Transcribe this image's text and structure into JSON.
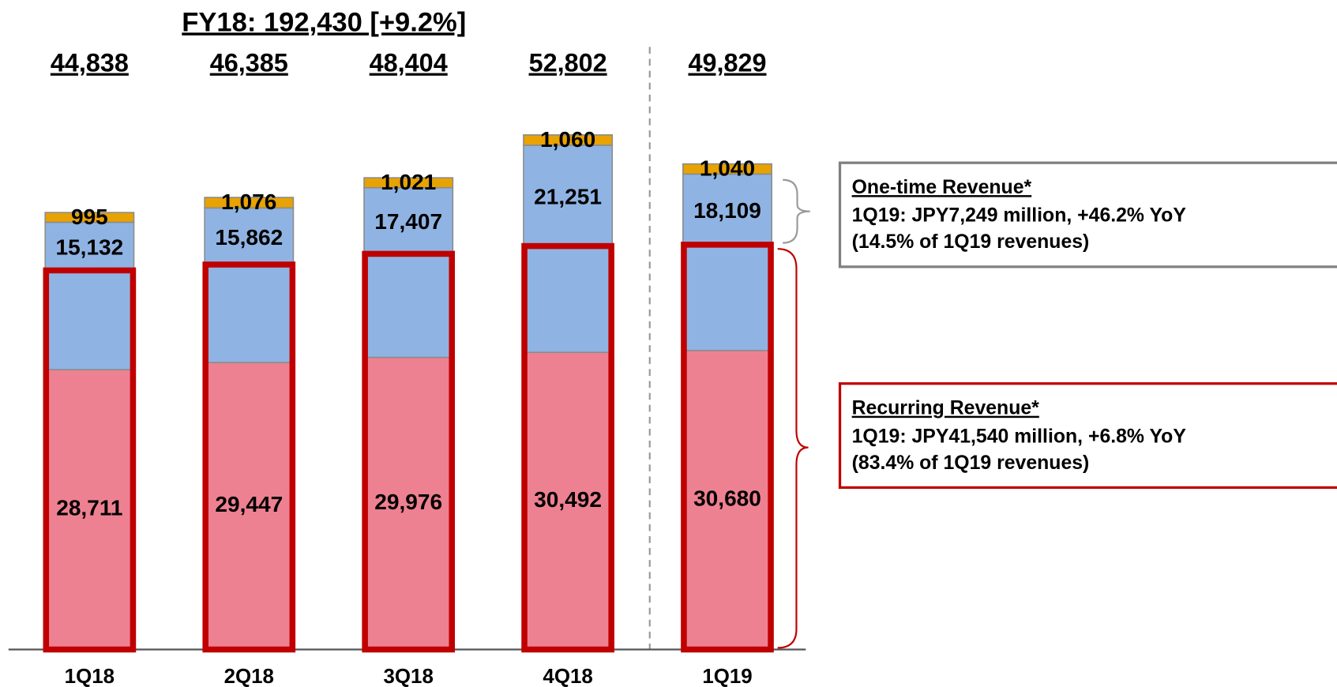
{
  "chart_data": {
    "type": "stacked_bar",
    "title": "FY18: 192,430 [+9.2%]",
    "categories": [
      "1Q18",
      "2Q18",
      "3Q18",
      "4Q18",
      "1Q19"
    ],
    "series": [
      {
        "color": "#ee8191",
        "values": [
          28711,
          29447,
          29976,
          30492,
          30680
        ],
        "value_labels": [
          "28,711",
          "29,447",
          "29,976",
          "30,492",
          "30,680"
        ]
      },
      {
        "color": "#8fb4e3",
        "values": [
          15132,
          15862,
          17407,
          21251,
          18109
        ],
        "value_labels": [
          "15,132",
          "15,862",
          "17,407",
          "21,251",
          "18,109"
        ]
      },
      {
        "color": "#e8a202",
        "values": [
          995,
          1076,
          1021,
          1060,
          1040
        ],
        "value_labels": [
          "995",
          "1,076",
          "1,021",
          "1,060",
          "1,040"
        ]
      }
    ],
    "totals": {
      "values": [
        44838,
        46385,
        48404,
        52802,
        49829
      ],
      "value_labels": [
        "44,838",
        "46,385",
        "48,404",
        "52,802",
        "49,829"
      ]
    },
    "outlines": {
      "color": "#c00000",
      "values": [
        38900,
        39500,
        40600,
        41400,
        41540
      ]
    },
    "ylim": [
      0,
      60000
    ],
    "annotations": [
      {
        "title": "One-time Revenue*",
        "lines": [
          "1Q19: JPY7,249 million, +46.2% YoY",
          "(14.5% of 1Q19 revenues)"
        ],
        "color": "#808080"
      },
      {
        "title": "Recurring Revenue*",
        "lines": [
          "1Q19: JPY41,540 million, +6.8% YoY",
          "(83.4% of 1Q19 revenues)"
        ],
        "color": "#c00000"
      }
    ]
  }
}
